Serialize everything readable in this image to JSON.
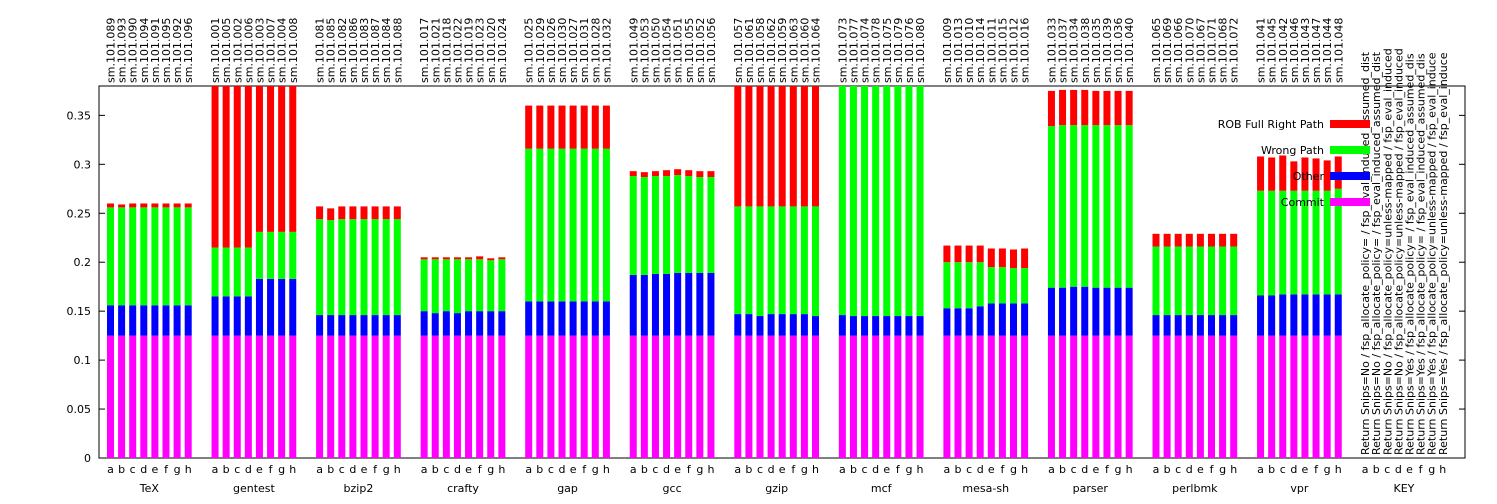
{
  "chart_data": {
    "type": "bar",
    "stacked": true,
    "ylim": [
      0,
      0.38
    ],
    "yticks": [
      "0",
      "0.05",
      "0.1",
      "0.15",
      "0.2",
      "0.25",
      "0.3",
      "0.35"
    ],
    "ytick_values": [
      0,
      0.05,
      0.1,
      0.15,
      0.2,
      0.25,
      0.3,
      0.35
    ],
    "legend_position": "top-right",
    "colors": {
      "commit": "#ff00ff",
      "other": "#0000ff",
      "wrong_path": "#00ff00",
      "rob_full": "#ff0000"
    },
    "series": [
      {
        "name": "ROB Full Right Path",
        "key": "rob_full"
      },
      {
        "name": "Wrong Path",
        "key": "wrong_path"
      },
      {
        "name": "Other",
        "key": "other"
      },
      {
        "name": "Commit",
        "key": "commit"
      }
    ],
    "bar_letters": [
      "a",
      "b",
      "c",
      "d",
      "e",
      "f",
      "g",
      "h"
    ],
    "groups": [
      {
        "name": "TeX",
        "runs": [
          "sm.101.089",
          "sm.101.093",
          "sm.101.090",
          "sm.101.094",
          "sm.101.091",
          "sm.101.095",
          "sm.101.092",
          "sm.101.096"
        ],
        "commit": [
          0.125,
          0.125,
          0.125,
          0.125,
          0.125,
          0.125,
          0.125,
          0.125
        ],
        "other": [
          0.031,
          0.031,
          0.031,
          0.031,
          0.031,
          0.031,
          0.031,
          0.031
        ],
        "wrong_path": [
          0.1,
          0.1,
          0.1,
          0.1,
          0.1,
          0.1,
          0.1,
          0.1
        ],
        "rob_full": [
          0.004,
          0.003,
          0.004,
          0.004,
          0.004,
          0.004,
          0.004,
          0.004
        ]
      },
      {
        "name": "gentest",
        "runs": [
          "sm.101.001",
          "sm.101.005",
          "sm.101.002",
          "sm.101.006",
          "sm.101.003",
          "sm.101.007",
          "sm.101.004",
          "sm.101.008"
        ],
        "commit": [
          0.125,
          0.125,
          0.125,
          0.125,
          0.125,
          0.125,
          0.125,
          0.125
        ],
        "other": [
          0.04,
          0.04,
          0.04,
          0.04,
          0.058,
          0.058,
          0.058,
          0.058
        ],
        "wrong_path": [
          0.05,
          0.05,
          0.05,
          0.05,
          0.048,
          0.048,
          0.048,
          0.048
        ],
        "rob_full": [
          0.165,
          0.165,
          0.165,
          0.165,
          0.149,
          0.149,
          0.149,
          0.149
        ]
      },
      {
        "name": "bzip2",
        "runs": [
          "sm.101.081",
          "sm.101.085",
          "sm.101.082",
          "sm.101.086",
          "sm.101.083",
          "sm.101.087",
          "sm.101.084",
          "sm.101.088"
        ],
        "commit": [
          0.125,
          0.125,
          0.125,
          0.125,
          0.125,
          0.125,
          0.125,
          0.125
        ],
        "other": [
          0.021,
          0.021,
          0.021,
          0.021,
          0.021,
          0.021,
          0.021,
          0.021
        ],
        "wrong_path": [
          0.098,
          0.097,
          0.098,
          0.098,
          0.098,
          0.098,
          0.098,
          0.098
        ],
        "rob_full": [
          0.013,
          0.012,
          0.013,
          0.013,
          0.013,
          0.013,
          0.013,
          0.013
        ]
      },
      {
        "name": "crafty",
        "runs": [
          "sm.101.017",
          "sm.101.021",
          "sm.101.018",
          "sm.101.022",
          "sm.101.019",
          "sm.101.023",
          "sm.101.020",
          "sm.101.024"
        ],
        "commit": [
          0.125,
          0.125,
          0.125,
          0.125,
          0.125,
          0.125,
          0.125,
          0.125
        ],
        "other": [
          0.025,
          0.023,
          0.025,
          0.023,
          0.025,
          0.025,
          0.025,
          0.025
        ],
        "wrong_path": [
          0.053,
          0.055,
          0.053,
          0.055,
          0.053,
          0.053,
          0.052,
          0.053
        ],
        "rob_full": [
          0.002,
          0.002,
          0.002,
          0.002,
          0.002,
          0.003,
          0.002,
          0.002
        ]
      },
      {
        "name": "gap",
        "runs": [
          "sm.101.025",
          "sm.101.029",
          "sm.101.026",
          "sm.101.030",
          "sm.101.027",
          "sm.101.031",
          "sm.101.028",
          "sm.101.032"
        ],
        "commit": [
          0.125,
          0.125,
          0.125,
          0.125,
          0.125,
          0.125,
          0.125,
          0.125
        ],
        "other": [
          0.035,
          0.035,
          0.035,
          0.035,
          0.035,
          0.035,
          0.035,
          0.035
        ],
        "wrong_path": [
          0.156,
          0.156,
          0.156,
          0.156,
          0.156,
          0.156,
          0.156,
          0.156
        ],
        "rob_full": [
          0.044,
          0.044,
          0.044,
          0.044,
          0.044,
          0.044,
          0.044,
          0.044
        ]
      },
      {
        "name": "gcc",
        "runs": [
          "sm.101.049",
          "sm.101.053",
          "sm.101.050",
          "sm.101.054",
          "sm.101.051",
          "sm.101.055",
          "sm.101.052",
          "sm.101.056"
        ],
        "commit": [
          0.125,
          0.125,
          0.125,
          0.125,
          0.125,
          0.125,
          0.125,
          0.125
        ],
        "other": [
          0.062,
          0.062,
          0.063,
          0.063,
          0.064,
          0.064,
          0.064,
          0.064
        ],
        "wrong_path": [
          0.101,
          0.1,
          0.1,
          0.1,
          0.1,
          0.099,
          0.098,
          0.098
        ],
        "rob_full": [
          0.005,
          0.005,
          0.005,
          0.006,
          0.006,
          0.006,
          0.006,
          0.006
        ]
      },
      {
        "name": "gzip",
        "runs": [
          "sm.101.057",
          "sm.101.061",
          "sm.101.058",
          "sm.101.062",
          "sm.101.059",
          "sm.101.063",
          "sm.101.060",
          "sm.101.064"
        ],
        "commit": [
          0.125,
          0.125,
          0.125,
          0.125,
          0.125,
          0.125,
          0.125,
          0.125
        ],
        "other": [
          0.022,
          0.022,
          0.02,
          0.022,
          0.022,
          0.022,
          0.022,
          0.02
        ],
        "wrong_path": [
          0.11,
          0.11,
          0.112,
          0.11,
          0.11,
          0.11,
          0.11,
          0.112
        ],
        "rob_full": [
          0.123,
          0.123,
          0.123,
          0.123,
          0.123,
          0.123,
          0.123,
          0.123
        ]
      },
      {
        "name": "mcf",
        "runs": [
          "sm.101.073",
          "sm.101.077",
          "sm.101.074",
          "sm.101.078",
          "sm.101.075",
          "sm.101.079",
          "sm.101.076",
          "sm.101.080"
        ],
        "commit": [
          0.125,
          0.125,
          0.125,
          0.125,
          0.125,
          0.125,
          0.125,
          0.125
        ],
        "other": [
          0.021,
          0.02,
          0.02,
          0.02,
          0.02,
          0.02,
          0.02,
          0.02
        ],
        "wrong_path": [
          0.234,
          0.235,
          0.235,
          0.235,
          0.235,
          0.235,
          0.235,
          0.235
        ],
        "rob_full": [
          0,
          0,
          0,
          0,
          0,
          0,
          0,
          0
        ]
      },
      {
        "name": "mesa-sh",
        "runs": [
          "sm.101.009",
          "sm.101.013",
          "sm.101.010",
          "sm.101.014",
          "sm.101.011",
          "sm.101.015",
          "sm.101.012",
          "sm.101.016"
        ],
        "commit": [
          0.125,
          0.125,
          0.125,
          0.125,
          0.125,
          0.125,
          0.125,
          0.125
        ],
        "other": [
          0.028,
          0.028,
          0.028,
          0.03,
          0.033,
          0.033,
          0.033,
          0.033
        ],
        "wrong_path": [
          0.047,
          0.047,
          0.047,
          0.045,
          0.037,
          0.037,
          0.036,
          0.036
        ],
        "rob_full": [
          0.017,
          0.017,
          0.017,
          0.017,
          0.019,
          0.019,
          0.019,
          0.02
        ]
      },
      {
        "name": "parser",
        "runs": [
          "sm.101.033",
          "sm.101.037",
          "sm.101.034",
          "sm.101.038",
          "sm.101.035",
          "sm.101.039",
          "sm.101.036",
          "sm.101.040"
        ],
        "commit": [
          0.125,
          0.125,
          0.125,
          0.125,
          0.125,
          0.125,
          0.125,
          0.125
        ],
        "other": [
          0.049,
          0.049,
          0.05,
          0.05,
          0.049,
          0.049,
          0.049,
          0.049
        ],
        "wrong_path": [
          0.165,
          0.166,
          0.165,
          0.165,
          0.166,
          0.166,
          0.166,
          0.166
        ],
        "rob_full": [
          0.036,
          0.036,
          0.036,
          0.036,
          0.035,
          0.035,
          0.035,
          0.035
        ]
      },
      {
        "name": "perlbmk",
        "runs": [
          "sm.101.065",
          "sm.101.069",
          "sm.101.066",
          "sm.101.070",
          "sm.101.067",
          "sm.101.071",
          "sm.101.068",
          "sm.101.072"
        ],
        "commit": [
          0.125,
          0.125,
          0.125,
          0.125,
          0.125,
          0.125,
          0.125,
          0.125
        ],
        "other": [
          0.021,
          0.021,
          0.021,
          0.021,
          0.021,
          0.021,
          0.021,
          0.021
        ],
        "wrong_path": [
          0.07,
          0.07,
          0.07,
          0.07,
          0.07,
          0.07,
          0.07,
          0.07
        ],
        "rob_full": [
          0.013,
          0.013,
          0.013,
          0.013,
          0.013,
          0.013,
          0.013,
          0.013
        ]
      },
      {
        "name": "vpr",
        "runs": [
          "sm.101.041",
          "sm.101.045",
          "sm.101.042",
          "sm.101.046",
          "sm.101.043",
          "sm.101.047",
          "sm.101.044",
          "sm.101.048"
        ],
        "commit": [
          0.125,
          0.125,
          0.125,
          0.125,
          0.125,
          0.125,
          0.125,
          0.125
        ],
        "other": [
          0.041,
          0.041,
          0.042,
          0.042,
          0.042,
          0.042,
          0.042,
          0.042
        ],
        "wrong_path": [
          0.107,
          0.107,
          0.106,
          0.106,
          0.106,
          0.106,
          0.106,
          0.108
        ],
        "rob_full": [
          0.035,
          0.034,
          0.036,
          0.03,
          0.034,
          0.033,
          0.031,
          0.033
        ]
      }
    ],
    "key": {
      "name": "KEY",
      "entries": [
        "Return Snips=No / fsp_allocate_policy= / fsp_eval_induced_assumed_dist",
        "Return Snips=No / fsp_allocate_policy= / fsp_eval_induced_assumed_dist",
        "Return Snips=No / fsp_allocate_policy=unless-mapped / fsp_eval_induced",
        "Return Snips=No / fsp_allocate_policy=unless-mapped / fsp_eval_induced",
        "Return Snips=Yes / fsp_allocate_policy= / fsp_eval_induced_assumed_dis",
        "Return Snips=Yes / fsp_allocate_policy= / fsp_eval_induced_assumed_dis",
        "Return Snips=Yes / fsp_allocate_policy=unless-mapped / fsp_eval_induce",
        "Return Snips=Yes / fsp_allocate_policy=unless-mapped / fsp_eval_induce"
      ]
    }
  }
}
